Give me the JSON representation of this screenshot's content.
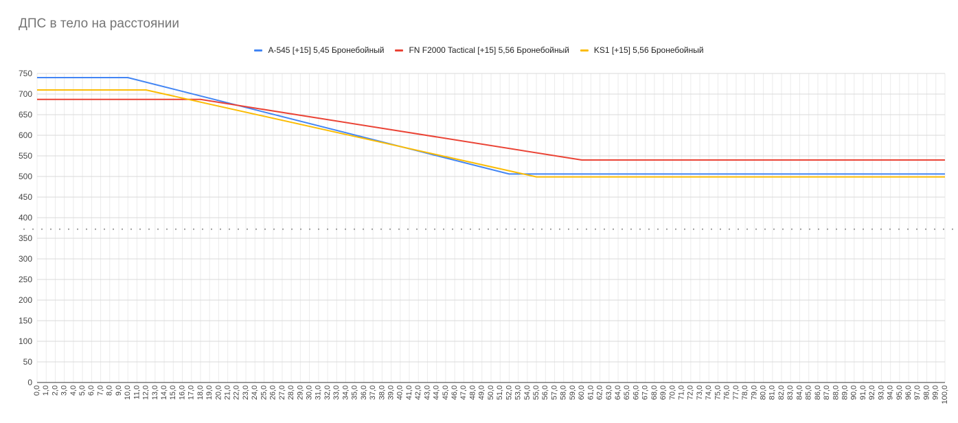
{
  "chart_data": {
    "type": "line",
    "title": "ДПС в тело на расстоянии",
    "xlabel": "",
    "ylabel": "",
    "ylim": [
      0,
      750
    ],
    "y_ticks": [
      0,
      50,
      100,
      150,
      200,
      250,
      300,
      350,
      400,
      450,
      500,
      550,
      600,
      650,
      700,
      750
    ],
    "x_range": [
      0,
      100
    ],
    "x_tick_step": 1,
    "grid": true,
    "legend_position": "top",
    "reference_line": {
      "y": 372,
      "style": "dotted",
      "color": "#9e9e9e"
    },
    "series": [
      {
        "name": "A-545 [+15] 5,45 Бронебойный",
        "color": "#4285f4",
        "points": [
          [
            0,
            740
          ],
          [
            10,
            740
          ],
          [
            52,
            506
          ],
          [
            100,
            506
          ]
        ]
      },
      {
        "name": "FN F2000 Tactical [+15] 5,56 Бронебойный",
        "color": "#ea4335",
        "points": [
          [
            0,
            687
          ],
          [
            18,
            687
          ],
          [
            60,
            540
          ],
          [
            100,
            540
          ]
        ]
      },
      {
        "name": "KS1 [+15] 5,56 Бронебойный",
        "color": "#fbbc04",
        "points": [
          [
            0,
            710
          ],
          [
            12,
            710
          ],
          [
            55,
            499
          ],
          [
            100,
            499
          ]
        ]
      }
    ]
  }
}
